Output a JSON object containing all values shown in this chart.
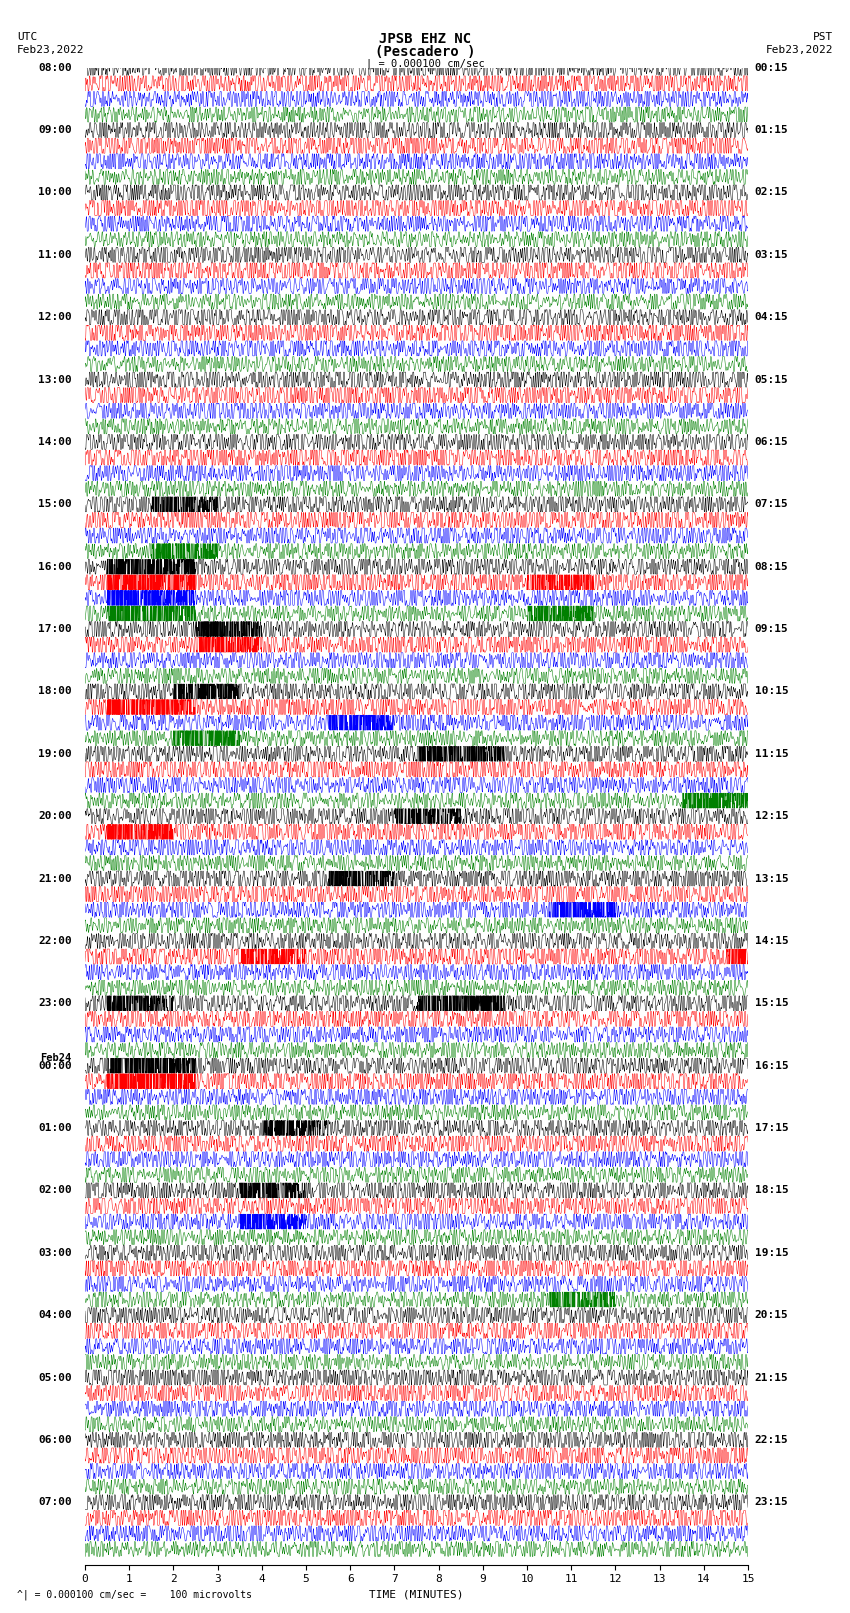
{
  "title_line1": "JPSB EHZ NC",
  "title_line2": "(Pescadero )",
  "scale_label": "| = 0.000100 cm/sec",
  "left_header_line1": "UTC",
  "left_header_line2": "Feb23,2022",
  "right_header_line1": "PST",
  "right_header_line2": "Feb23,2022",
  "xlabel": "TIME (MINUTES)",
  "footer": "^| = 0.000100 cm/sec =    100 microvolts",
  "left_times": [
    "08:00",
    "09:00",
    "10:00",
    "11:00",
    "12:00",
    "13:00",
    "14:00",
    "15:00",
    "16:00",
    "17:00",
    "18:00",
    "19:00",
    "20:00",
    "21:00",
    "22:00",
    "23:00",
    "Feb24\n00:00",
    "01:00",
    "02:00",
    "03:00",
    "04:00",
    "05:00",
    "06:00",
    "07:00"
  ],
  "right_times": [
    "00:15",
    "01:15",
    "02:15",
    "03:15",
    "04:15",
    "05:15",
    "06:15",
    "07:15",
    "08:15",
    "09:15",
    "10:15",
    "11:15",
    "12:15",
    "13:15",
    "14:15",
    "15:15",
    "16:15",
    "17:15",
    "18:15",
    "19:15",
    "20:15",
    "21:15",
    "22:15",
    "23:15"
  ],
  "colors": [
    "black",
    "red",
    "blue",
    "green"
  ],
  "n_groups": 24,
  "x_min": 0,
  "x_max": 15,
  "x_ticks": [
    0,
    1,
    2,
    3,
    4,
    5,
    6,
    7,
    8,
    9,
    10,
    11,
    12,
    13,
    14,
    15
  ],
  "background_color": "white",
  "figsize": [
    8.5,
    16.13
  ],
  "dpi": 100,
  "noise_scale": 1.0,
  "title_fontsize": 10,
  "label_fontsize": 8,
  "tick_fontsize": 8
}
